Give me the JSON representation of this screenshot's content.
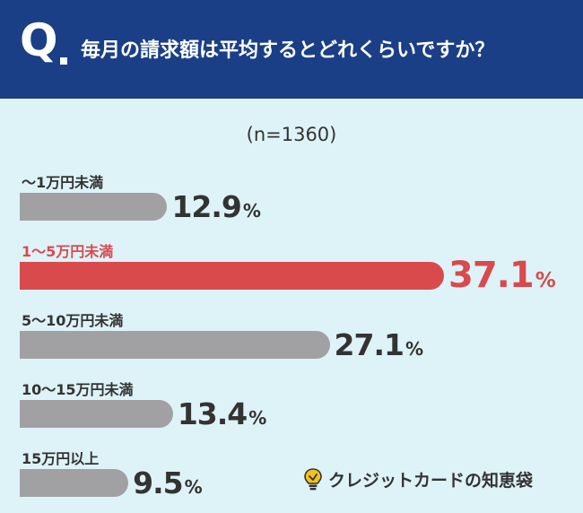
{
  "header": {
    "q_mark": "Q",
    "question": "毎月の請求額は平均するとどれくらいですか？"
  },
  "sample_size": "(n=1360)",
  "colors": {
    "header_bg": "#1b3f86",
    "background": "#def3f8",
    "bar_default": "#a1a1a4",
    "bar_highlight": "#d94a4d",
    "text": "#333333"
  },
  "chart_data": {
    "type": "bar",
    "orientation": "horizontal",
    "title": "毎月の請求額は平均するとどれくらいですか？",
    "categories": [
      "〜1万円未満",
      "1〜5万円未満",
      "5〜10万円未満",
      "10〜15万円未満",
      "15万円以上"
    ],
    "values": [
      12.9,
      37.1,
      27.1,
      13.4,
      9.5
    ],
    "value_labels": [
      "12.9",
      "37.1",
      "27.1",
      "13.4",
      "9.5"
    ],
    "unit": "%",
    "highlight_index": 1,
    "xlim": [
      0,
      40
    ],
    "grid": false,
    "legend": "none"
  },
  "logo": {
    "icon": "light-bulb-icon",
    "text": "クレジットカードの知恵袋"
  }
}
